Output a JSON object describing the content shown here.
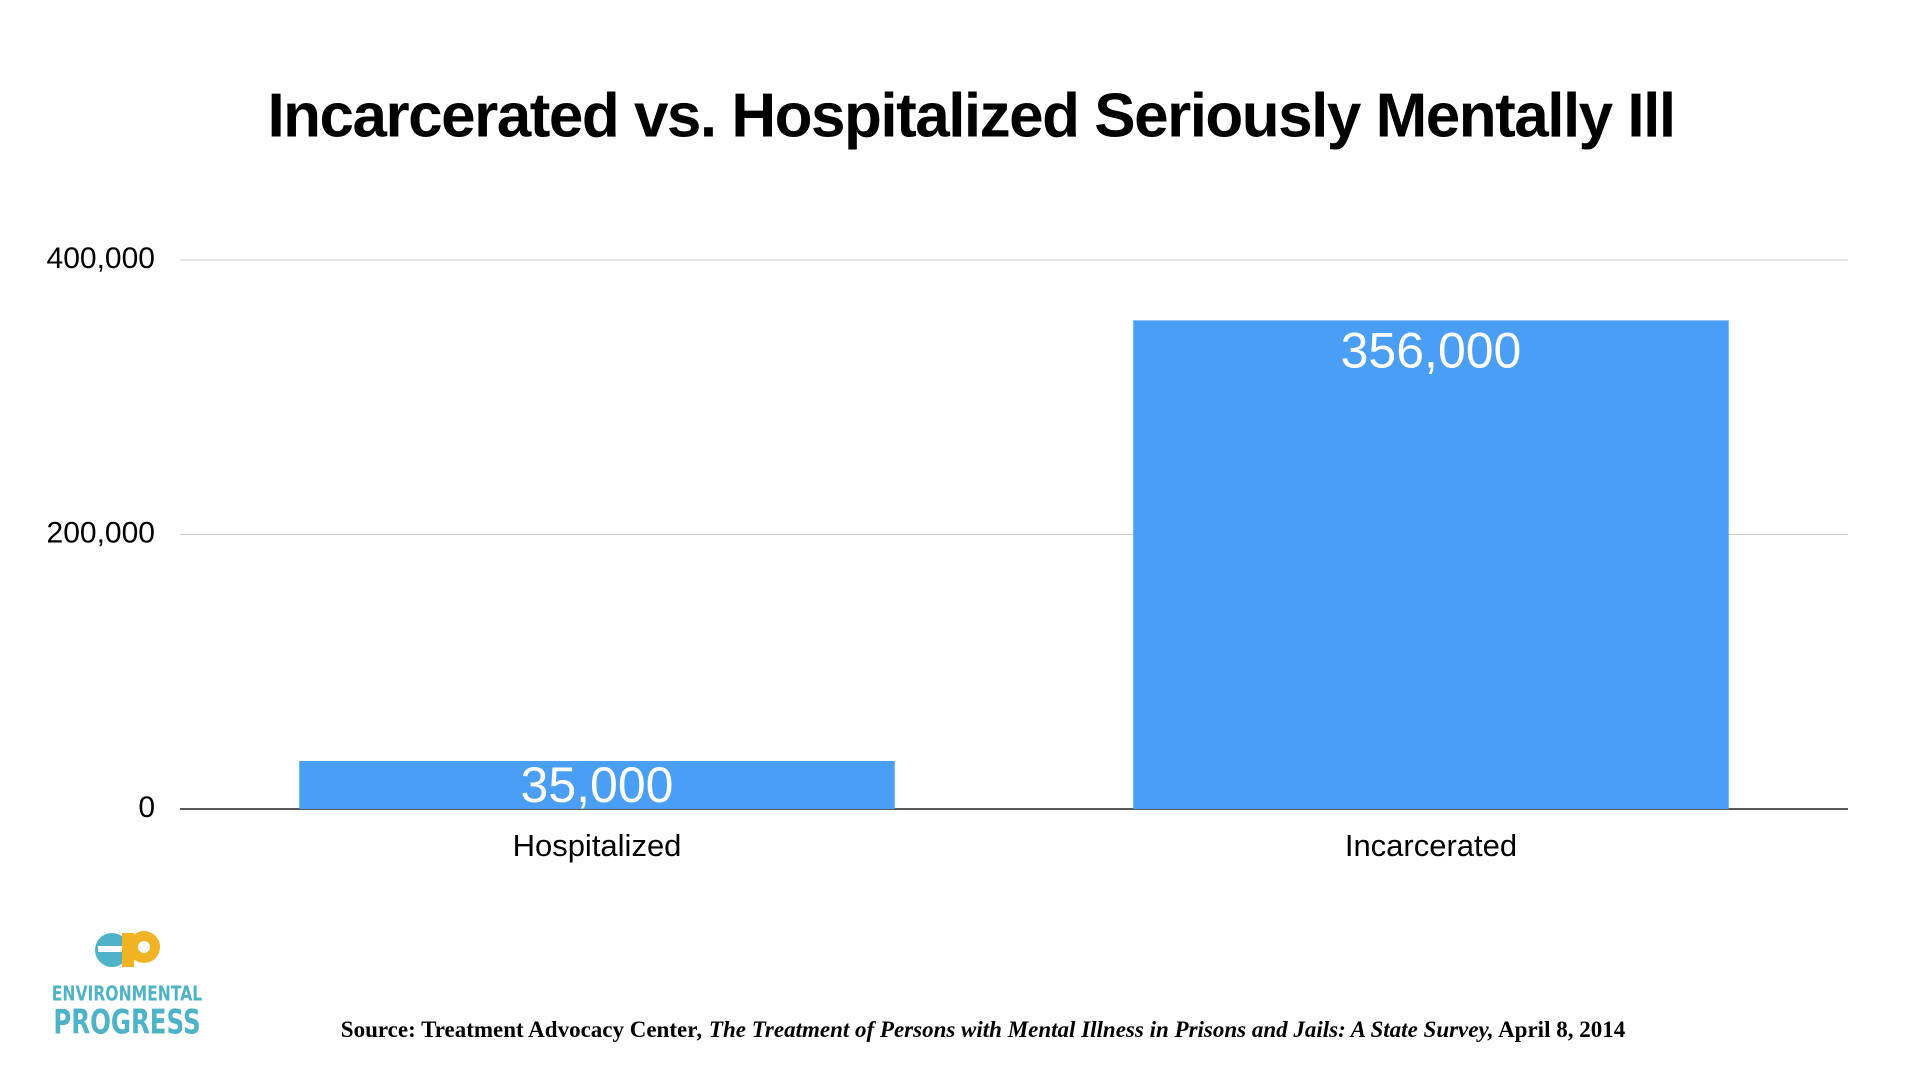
{
  "chart_data": {
    "type": "bar",
    "title": "Incarcerated vs. Hospitalized Seriously Mentally Ill",
    "categories": [
      "Hospitalized",
      "Incarcerated"
    ],
    "values": [
      35000,
      356000
    ],
    "value_labels": [
      "35,000",
      "356,000"
    ],
    "color": "#4a9ff5",
    "ylim": [
      0,
      400000
    ],
    "yticks": [
      0,
      {
        "value": 200000,
        "label": "200,000"
      },
      {
        "value": 400000,
        "label": "400,000"
      }
    ],
    "grid": true
  },
  "source": {
    "lead": "Source: Treatment Advocacy Center",
    "work": ", The Treatment of Persons with Mental Illness in Prisons and Jails: A State Survey,",
    "date": " April 8, 2014"
  },
  "logo": {
    "line1": "ENVIRONMENTAL",
    "line2": "PROGRESS"
  }
}
